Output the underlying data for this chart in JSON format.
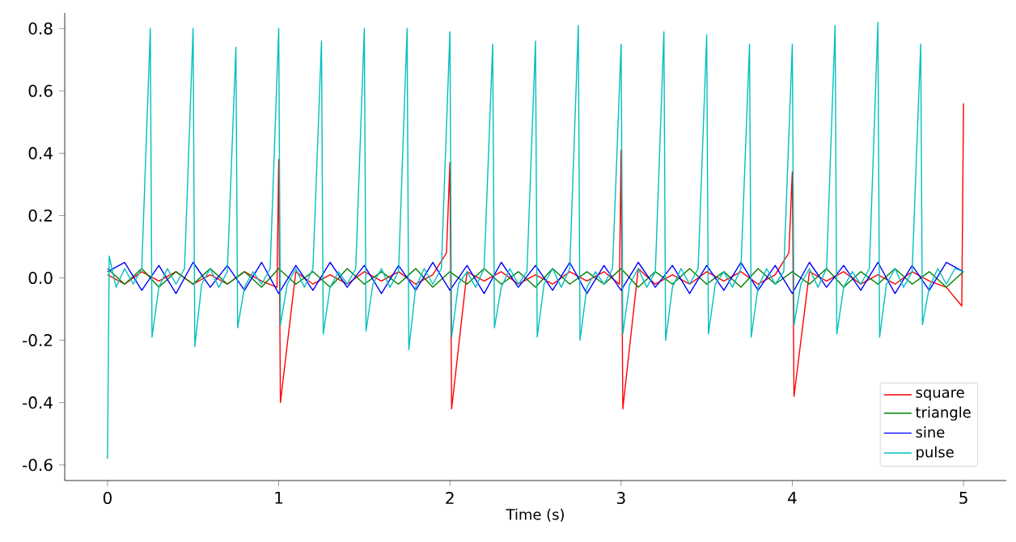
{
  "chart_data": {
    "type": "line",
    "xlabel": "Time (s)",
    "xlim": [
      -0.25,
      5.25
    ],
    "ylim": [
      -0.65,
      0.85
    ],
    "xticks": [
      0,
      1,
      2,
      3,
      4,
      5
    ],
    "yticks": [
      -0.6,
      -0.4,
      -0.2,
      {
        "value": 0,
        "label": "0.0"
      },
      0.2,
      0.4,
      0.6,
      0.8
    ],
    "legend": "bottom right",
    "series": [
      {
        "name": "square",
        "color": "#ff0000",
        "x": [
          0,
          0.1,
          0.2,
          0.3,
          0.4,
          0.5,
          0.6,
          0.7,
          0.8,
          0.9,
          0.99,
          1,
          1.01,
          1.1,
          1.2,
          1.3,
          1.4,
          1.5,
          1.6,
          1.7,
          1.8,
          1.9,
          1.98,
          2,
          2.01,
          2.1,
          2.2,
          2.3,
          2.4,
          2.5,
          2.6,
          2.7,
          2.8,
          2.9,
          2.99,
          3,
          3.01,
          3.1,
          3.2,
          3.3,
          3.4,
          3.5,
          3.6,
          3.7,
          3.8,
          3.9,
          3.98,
          4,
          4.01,
          4.1,
          4.2,
          4.3,
          4.4,
          4.5,
          4.6,
          4.7,
          4.8,
          4.9,
          4.99,
          5
        ],
        "values": [
          0.01,
          -0.02,
          0.02,
          -0.01,
          0.02,
          -0.02,
          0.01,
          -0.02,
          0.02,
          -0.01,
          -0.03,
          0.38,
          -0.4,
          0.02,
          -0.02,
          0.01,
          -0.02,
          0.02,
          -0.01,
          0.02,
          -0.02,
          0.01,
          0.08,
          0.37,
          -0.42,
          0.02,
          -0.01,
          0.02,
          -0.02,
          0.01,
          -0.02,
          0.02,
          -0.01,
          0.02,
          -0.02,
          0.41,
          -0.42,
          0.03,
          -0.02,
          0.01,
          -0.02,
          0.02,
          -0.01,
          0.02,
          -0.02,
          0.01,
          0.08,
          0.34,
          -0.38,
          0.02,
          -0.01,
          0.02,
          -0.02,
          0.01,
          -0.02,
          0.02,
          -0.01,
          -0.03,
          -0.09,
          0.56
        ]
      },
      {
        "name": "triangle",
        "color": "#008000",
        "x": [
          0,
          0.1,
          0.2,
          0.3,
          0.4,
          0.5,
          0.6,
          0.7,
          0.8,
          0.9,
          1,
          1.1,
          1.2,
          1.3,
          1.4,
          1.5,
          1.6,
          1.7,
          1.8,
          1.9,
          2,
          2.1,
          2.2,
          2.3,
          2.4,
          2.5,
          2.6,
          2.7,
          2.8,
          2.9,
          3,
          3.1,
          3.2,
          3.3,
          3.4,
          3.5,
          3.6,
          3.7,
          3.8,
          3.9,
          4,
          4.1,
          4.2,
          4.3,
          4.4,
          4.5,
          4.6,
          4.7,
          4.8,
          4.9,
          5
        ],
        "values": [
          0.03,
          -0.02,
          0.03,
          -0.03,
          0.02,
          -0.02,
          0.03,
          -0.02,
          0.02,
          -0.03,
          0.03,
          -0.02,
          0.02,
          -0.03,
          0.03,
          -0.02,
          0.02,
          -0.02,
          0.03,
          -0.03,
          0.02,
          -0.02,
          0.03,
          -0.02,
          0.02,
          -0.03,
          0.03,
          -0.02,
          0.02,
          -0.02,
          0.03,
          -0.03,
          0.02,
          -0.02,
          0.03,
          -0.02,
          0.02,
          -0.03,
          0.03,
          -0.02,
          0.02,
          -0.02,
          0.03,
          -0.03,
          0.02,
          -0.02,
          0.03,
          -0.02,
          0.02,
          -0.03,
          0.02
        ]
      },
      {
        "name": "sine",
        "color": "#0000ff",
        "x": [
          0,
          0.1,
          0.2,
          0.3,
          0.4,
          0.5,
          0.6,
          0.7,
          0.8,
          0.9,
          1,
          1.1,
          1.2,
          1.3,
          1.4,
          1.5,
          1.6,
          1.7,
          1.8,
          1.9,
          2,
          2.1,
          2.2,
          2.3,
          2.4,
          2.5,
          2.6,
          2.7,
          2.8,
          2.9,
          3,
          3.1,
          3.2,
          3.3,
          3.4,
          3.5,
          3.6,
          3.7,
          3.8,
          3.9,
          4,
          4.1,
          4.2,
          4.3,
          4.4,
          4.5,
          4.6,
          4.7,
          4.8,
          4.9,
          5
        ],
        "values": [
          0.02,
          0.05,
          -0.04,
          0.04,
          -0.05,
          0.05,
          -0.03,
          0.04,
          -0.04,
          0.05,
          -0.05,
          0.04,
          -0.04,
          0.05,
          -0.03,
          0.04,
          -0.05,
          0.04,
          -0.04,
          0.05,
          -0.04,
          0.04,
          -0.05,
          0.05,
          -0.03,
          0.04,
          -0.04,
          0.05,
          -0.05,
          0.04,
          -0.04,
          0.05,
          -0.03,
          0.04,
          -0.05,
          0.04,
          -0.04,
          0.05,
          -0.04,
          0.04,
          -0.05,
          0.05,
          -0.03,
          0.04,
          -0.04,
          0.05,
          -0.05,
          0.04,
          -0.04,
          0.05,
          0.02
        ]
      },
      {
        "name": "pulse",
        "color": "#00bfbf",
        "x": [
          0,
          0.01,
          0.05,
          0.1,
          0.15,
          0.2,
          0.25,
          0.26,
          0.3,
          0.35,
          0.4,
          0.45,
          0.5,
          0.51,
          0.55,
          0.6,
          0.65,
          0.7,
          0.75,
          0.76,
          0.8,
          0.85,
          0.9,
          0.95,
          1,
          1.01,
          1.05,
          1.1,
          1.15,
          1.2,
          1.25,
          1.26,
          1.3,
          1.35,
          1.4,
          1.45,
          1.5,
          1.51,
          1.55,
          1.6,
          1.65,
          1.7,
          1.75,
          1.76,
          1.8,
          1.85,
          1.9,
          1.95,
          2,
          2.01,
          2.05,
          2.1,
          2.15,
          2.2,
          2.25,
          2.26,
          2.3,
          2.35,
          2.4,
          2.45,
          2.5,
          2.51,
          2.55,
          2.6,
          2.65,
          2.7,
          2.75,
          2.76,
          2.8,
          2.85,
          2.9,
          2.95,
          3,
          3.01,
          3.05,
          3.1,
          3.15,
          3.2,
          3.25,
          3.26,
          3.3,
          3.35,
          3.4,
          3.45,
          3.5,
          3.51,
          3.55,
          3.6,
          3.65,
          3.7,
          3.75,
          3.76,
          3.8,
          3.85,
          3.9,
          3.95,
          4,
          4.01,
          4.05,
          4.1,
          4.15,
          4.2,
          4.25,
          4.26,
          4.3,
          4.35,
          4.4,
          4.45,
          4.5,
          4.51,
          4.55,
          4.6,
          4.65,
          4.7,
          4.75,
          4.76,
          4.8,
          4.85,
          4.9,
          4.95,
          5
        ],
        "values": [
          -0.58,
          0.07,
          -0.03,
          0.03,
          -0.02,
          0.03,
          0.8,
          -0.19,
          -0.03,
          0.03,
          -0.02,
          0.03,
          0.8,
          -0.22,
          -0.02,
          0.03,
          -0.03,
          0.02,
          0.74,
          -0.16,
          -0.03,
          0.02,
          -0.02,
          0.03,
          0.8,
          -0.15,
          -0.02,
          0.03,
          -0.03,
          0.03,
          0.76,
          -0.18,
          -0.03,
          0.02,
          -0.02,
          0.03,
          0.8,
          -0.17,
          -0.02,
          0.03,
          -0.03,
          0.02,
          0.8,
          -0.23,
          -0.03,
          0.03,
          -0.02,
          0.03,
          0.79,
          -0.19,
          -0.02,
          0.02,
          -0.03,
          0.03,
          0.75,
          -0.16,
          -0.03,
          0.03,
          -0.02,
          0.02,
          0.76,
          -0.19,
          -0.02,
          0.03,
          -0.03,
          0.03,
          0.81,
          -0.2,
          -0.03,
          0.02,
          -0.02,
          0.03,
          0.75,
          -0.18,
          -0.02,
          0.03,
          -0.03,
          0.02,
          0.79,
          -0.2,
          -0.03,
          0.03,
          -0.02,
          0.03,
          0.78,
          -0.18,
          -0.02,
          0.02,
          -0.03,
          0.03,
          0.75,
          -0.19,
          -0.03,
          0.03,
          -0.02,
          0.02,
          0.75,
          -0.15,
          -0.02,
          0.03,
          -0.03,
          0.03,
          0.81,
          -0.18,
          -0.03,
          0.02,
          -0.02,
          0.03,
          0.82,
          -0.19,
          -0.02,
          0.03,
          -0.03,
          0.02,
          0.75,
          -0.15,
          -0.03,
          0.03,
          -0.02,
          0.03,
          0.02
        ]
      }
    ]
  }
}
